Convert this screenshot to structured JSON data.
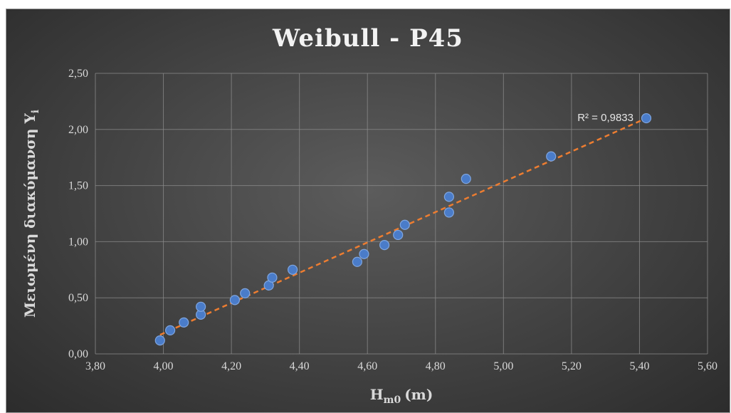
{
  "chart_data": {
    "type": "scatter",
    "title": "Weibull - P45",
    "xlabel": "H",
    "xlabel_sub": "m0",
    "xlabel_unit": "(m)",
    "ylabel": "Μειωμένη διακύμανση  Y",
    "ylabel_sub": "i",
    "xlim": [
      3.8,
      5.6
    ],
    "ylim": [
      0.0,
      2.5
    ],
    "x_ticks": [
      "3,80",
      "4,00",
      "4,20",
      "4,40",
      "4,60",
      "4,80",
      "5,00",
      "5,20",
      "5,40",
      "5,60"
    ],
    "y_ticks": [
      "0,00",
      "0,50",
      "1,00",
      "1,50",
      "2,00",
      "2,50"
    ],
    "grid": true,
    "series": [
      {
        "x": [
          3.99,
          4.02,
          4.06,
          4.11,
          4.11,
          4.21,
          4.24,
          4.31,
          4.32,
          4.38,
          4.57,
          4.59,
          4.65,
          4.69,
          4.71,
          4.84,
          4.84,
          4.89,
          5.14,
          5.42
        ],
        "y": [
          0.12,
          0.21,
          0.28,
          0.35,
          0.42,
          0.48,
          0.54,
          0.61,
          0.68,
          0.75,
          0.82,
          0.89,
          0.97,
          1.06,
          1.15,
          1.26,
          1.4,
          1.56,
          1.76,
          2.1
        ]
      }
    ],
    "trendline": {
      "type": "linear",
      "from": [
        3.99,
        0.17
      ],
      "to": [
        5.42,
        2.1
      ],
      "color": "#ed7d31"
    },
    "annotations": [
      "R² = 0,9833"
    ],
    "colors": {
      "points": "#4a7cc9",
      "trendline": "#ed7d31",
      "background": "#464646"
    }
  }
}
